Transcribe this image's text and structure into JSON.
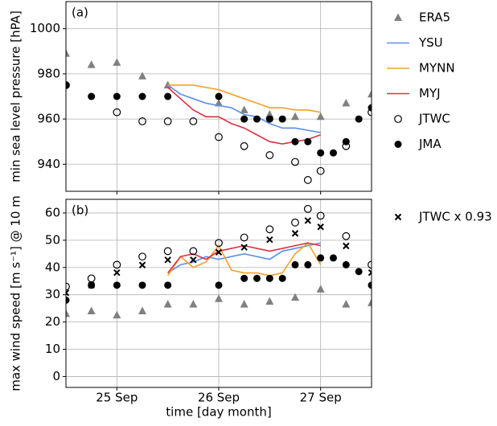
{
  "chart_data": [
    {
      "type": "line",
      "panel_label": "(a)",
      "ylabel": "min sea level pressure [hPA]",
      "xlim": [
        24.5,
        27.5
      ],
      "xticks": [
        25,
        26,
        27
      ],
      "ylim": [
        928,
        1012
      ],
      "yticks": [
        940,
        960,
        980,
        1000
      ],
      "grid": true,
      "legend": "outside right",
      "series": [
        {
          "name": "ERA5",
          "color": "#808080",
          "marker": "triangle",
          "x": [
            24.5,
            24.75,
            25,
            25.25,
            25.5,
            26,
            26.25,
            26.5,
            26.75,
            27,
            27.25,
            27.5
          ],
          "values": [
            989,
            984,
            985,
            979,
            975,
            967,
            964,
            962,
            961,
            961,
            967,
            971
          ]
        },
        {
          "name": "YSU",
          "color": "#5b8fe8",
          "marker": "line",
          "x": [
            25.5,
            25.625,
            25.75,
            25.875,
            26,
            26.125,
            26.25,
            26.375,
            26.5,
            26.625,
            26.75,
            26.875,
            27
          ],
          "values": [
            975,
            971,
            969,
            967,
            966,
            965,
            962,
            961,
            958,
            956,
            956,
            955,
            954
          ]
        },
        {
          "name": "MYNN",
          "color": "#f5a02a",
          "marker": "line",
          "x": [
            25.5,
            25.625,
            25.75,
            25.875,
            26,
            26.125,
            26.25,
            26.375,
            26.5,
            26.625,
            26.75,
            26.875,
            27
          ],
          "values": [
            975,
            975,
            975,
            974,
            973,
            971,
            969,
            967,
            965,
            965,
            964,
            964,
            963
          ]
        },
        {
          "name": "MYJ",
          "color": "#e0303f",
          "marker": "line",
          "x": [
            25.5,
            25.625,
            25.75,
            25.875,
            26,
            26.125,
            26.25,
            26.375,
            26.5,
            26.625,
            26.75,
            26.875,
            27
          ],
          "values": [
            974,
            969,
            964,
            961,
            961,
            958,
            956,
            953,
            950,
            949,
            950,
            951,
            953
          ]
        },
        {
          "name": "JTWC",
          "color": "#000000",
          "marker": "open-circle",
          "x": [
            24.5,
            25,
            25.25,
            25.5,
            25.75,
            26,
            26.25,
            26.5,
            26.75,
            26.875,
            27,
            27.25,
            27.5
          ],
          "values": [
            975,
            963,
            959,
            959,
            959,
            952,
            948,
            944,
            941,
            933,
            937,
            948,
            963
          ]
        },
        {
          "name": "JMA",
          "color": "#000000",
          "marker": "dot",
          "x": [
            24.5,
            24.75,
            25,
            25.25,
            25.5,
            26,
            26.25,
            26.375,
            26.5,
            26.625,
            26.75,
            26.875,
            27,
            27.125,
            27.25,
            27.375,
            27.5
          ],
          "values": [
            975,
            970,
            970,
            970,
            970,
            970,
            960,
            960,
            960,
            960,
            950,
            950,
            945,
            945,
            950,
            960,
            965
          ]
        }
      ]
    },
    {
      "type": "line",
      "panel_label": "(b)",
      "ylabel": "max wind speed [m s⁻¹] @ 10 m",
      "xlabel": "time [day month]",
      "xlim": [
        24.5,
        27.5
      ],
      "xticks": [
        {
          "value": 25,
          "label": "25 Sep"
        },
        {
          "value": 26,
          "label": "26 Sep"
        },
        {
          "value": 27,
          "label": "27 Sep"
        }
      ],
      "ylim": [
        -4,
        65
      ],
      "yticks": [
        0,
        10,
        20,
        30,
        40,
        50,
        60
      ],
      "grid": true,
      "legend": "outside right",
      "series": [
        {
          "name": null,
          "color": "#808080",
          "marker": "triangle",
          "x": [
            24.5,
            24.75,
            25,
            25.25,
            25.5,
            25.75,
            26,
            26.25,
            26.5,
            26.75,
            27,
            27.25,
            27.5
          ],
          "values": [
            23,
            24,
            22.5,
            24,
            26.5,
            26.5,
            28.5,
            26.5,
            27.5,
            29,
            32,
            26.5,
            27
          ]
        },
        {
          "name": null,
          "color": "#5b8fe8",
          "marker": "line",
          "x": [
            25.5,
            25.625,
            25.75,
            25.875,
            26,
            26.125,
            26.25,
            26.375,
            26.5,
            26.625,
            26.75,
            26.875,
            27
          ],
          "values": [
            38,
            41,
            42,
            44,
            43,
            44,
            45,
            44,
            43,
            46,
            47,
            48,
            49
          ]
        },
        {
          "name": null,
          "color": "#f5a02a",
          "marker": "line",
          "x": [
            25.5,
            25.625,
            25.75,
            25.875,
            26,
            26.125,
            26.25,
            26.375,
            26.5,
            26.625,
            26.75,
            26.875,
            27
          ],
          "values": [
            37,
            44,
            40,
            42,
            48,
            39,
            38,
            38,
            37,
            38,
            45,
            49,
            41
          ]
        },
        {
          "name": null,
          "color": "#e0303f",
          "marker": "line",
          "x": [
            25.5,
            25.625,
            25.75,
            25.875,
            26,
            26.125,
            26.25,
            26.375,
            26.5,
            26.625,
            26.75,
            26.875,
            27
          ],
          "values": [
            38,
            44,
            45,
            43,
            46,
            47,
            48,
            47,
            46,
            47,
            48,
            49,
            48
          ]
        },
        {
          "name": null,
          "color": "#000000",
          "marker": "open-circle",
          "x": [
            24.5,
            24.75,
            25,
            25.25,
            25.5,
            25.75,
            26,
            26.25,
            26.5,
            26.75,
            26.875,
            27,
            27.25,
            27.5
          ],
          "values": [
            33,
            36,
            41,
            44,
            46,
            46,
            49,
            51,
            54,
            56.5,
            61.5,
            59,
            51.5,
            41
          ]
        },
        {
          "name": "JTWC x 0.93",
          "color": "#000000",
          "marker": "x",
          "x": [
            24.5,
            24.75,
            25,
            25.25,
            25.5,
            25.75,
            26,
            26.25,
            26.5,
            26.75,
            26.875,
            27,
            27.25,
            27.5
          ],
          "values": [
            30.7,
            33.5,
            38.1,
            40.9,
            42.8,
            42.8,
            45.6,
            47.4,
            50.2,
            52.5,
            57.2,
            54.9,
            47.9,
            38.1
          ]
        },
        {
          "name": null,
          "color": "#000000",
          "marker": "dot",
          "x": [
            24.5,
            24.75,
            25,
            25.25,
            25.5,
            26,
            26.25,
            26.375,
            26.5,
            26.625,
            26.75,
            26.875,
            27,
            27.125,
            27.25,
            27.375,
            27.5
          ],
          "values": [
            28,
            33.5,
            33.5,
            33.5,
            33.5,
            33.5,
            36,
            36,
            36,
            36,
            41,
            41,
            43.5,
            43.5,
            41,
            38.5,
            33.5
          ]
        }
      ]
    }
  ]
}
